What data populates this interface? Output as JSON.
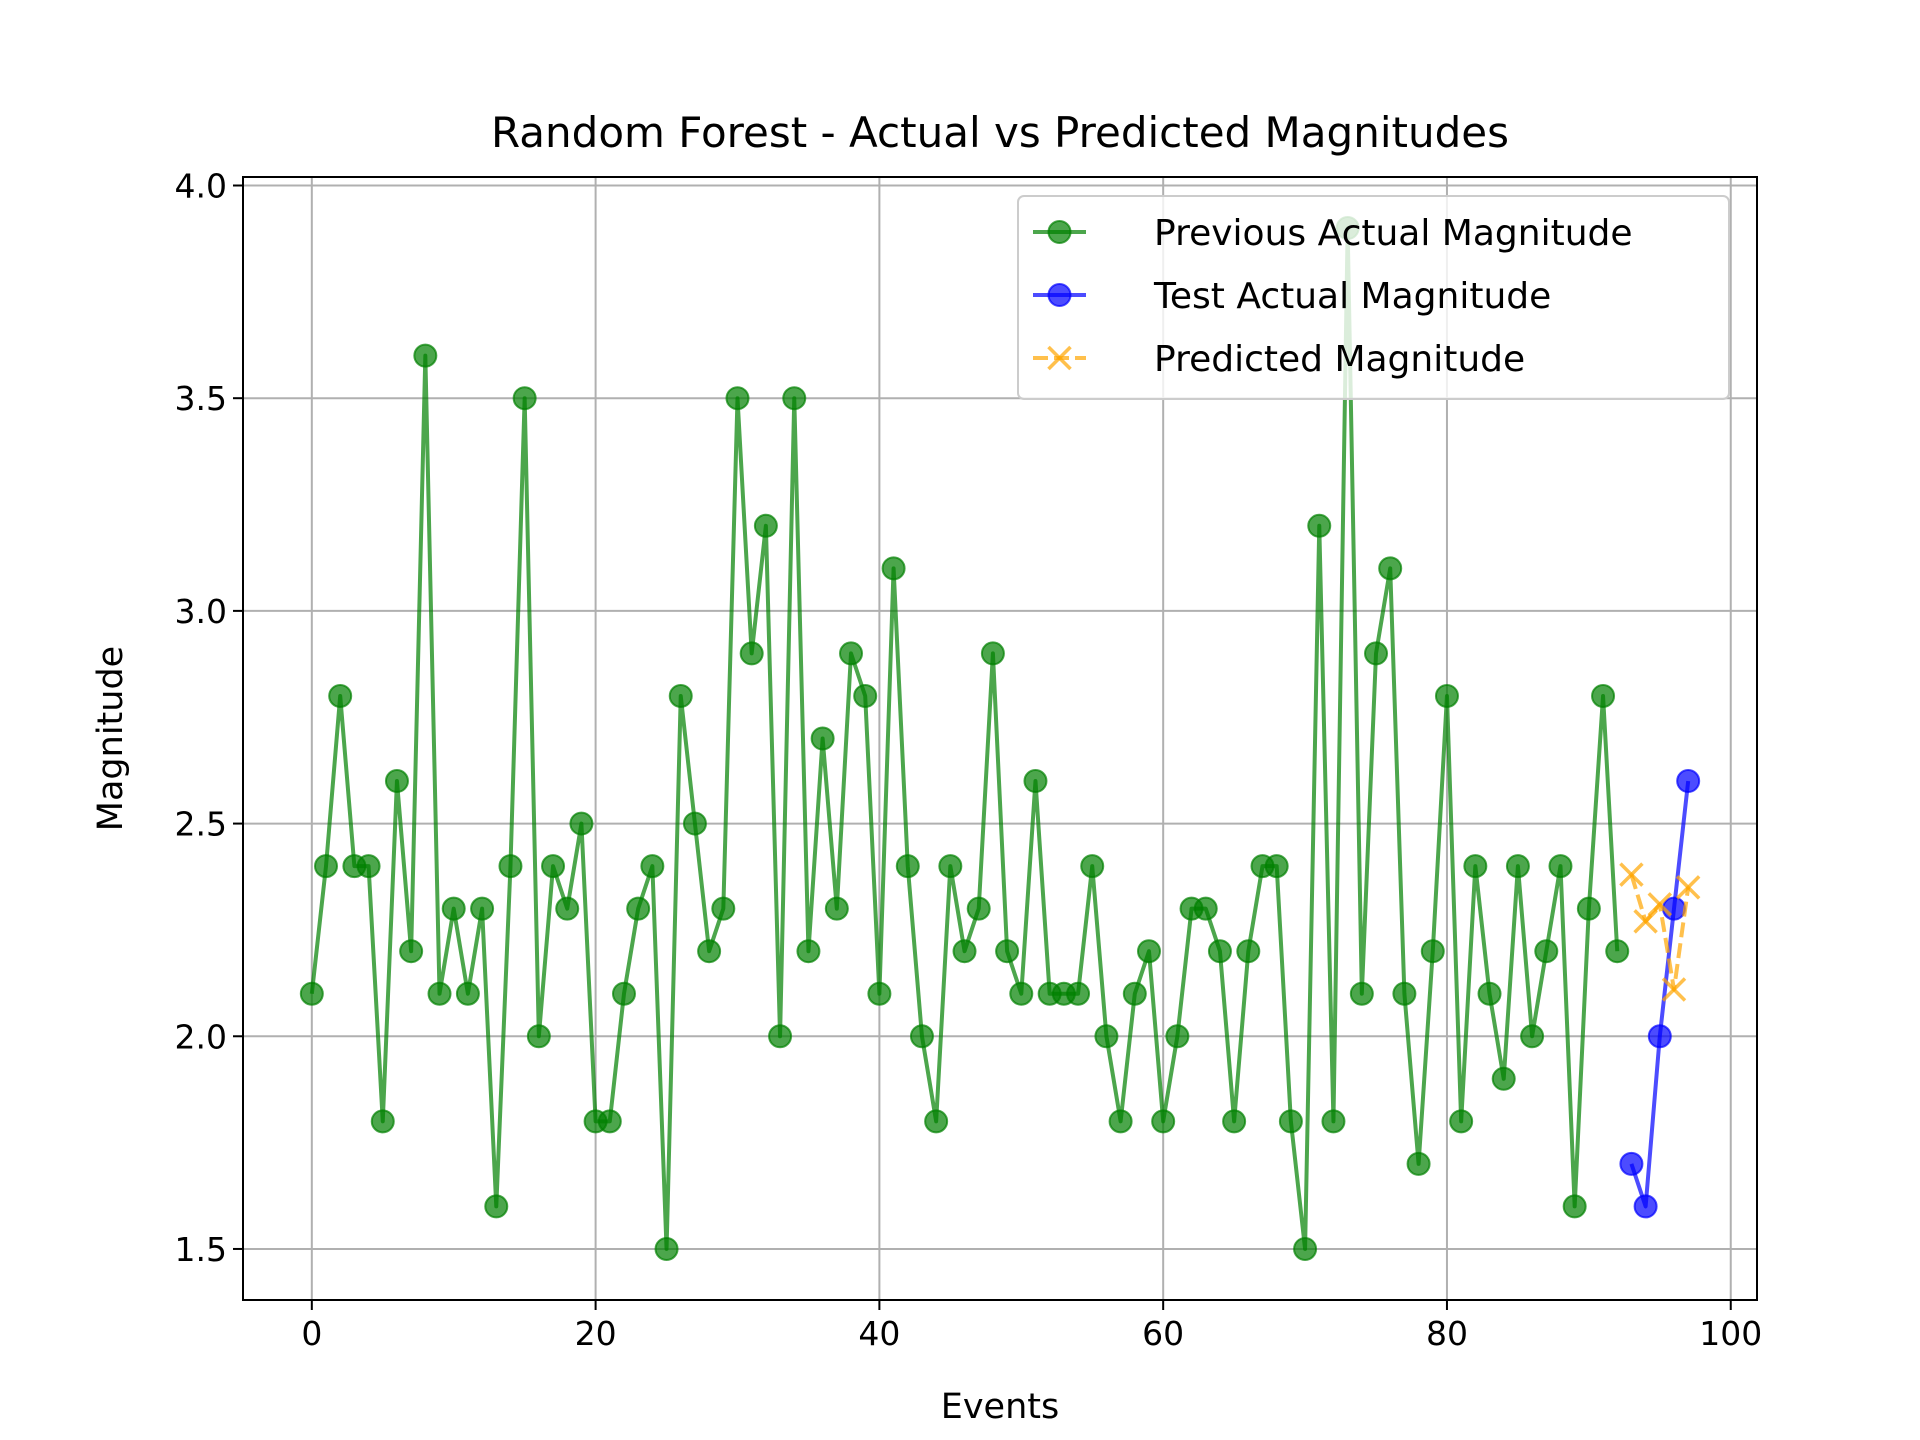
{
  "chart_data": {
    "type": "line",
    "title": "Random Forest - Actual vs Predicted Magnitudes",
    "xlabel": "Events",
    "ylabel": "Magnitude",
    "xlim": [
      -4.85,
      101.85
    ],
    "ylim": [
      1.38,
      4.02
    ],
    "xticks": [
      0,
      20,
      40,
      60,
      80,
      100
    ],
    "xtick_labels": [
      "0",
      "20",
      "40",
      "60",
      "80",
      "100"
    ],
    "yticks": [
      1.5,
      2.0,
      2.5,
      3.0,
      3.5,
      4.0
    ],
    "ytick_labels": [
      "1.5",
      "2.0",
      "2.5",
      "3.0",
      "3.5",
      "4.0"
    ],
    "grid": true,
    "legend_position": "upper right",
    "series": [
      {
        "name": "Previous Actual Magnitude",
        "color": "#008000",
        "marker": "circle",
        "linestyle": "solid",
        "x": [
          0,
          1,
          2,
          3,
          4,
          5,
          6,
          7,
          8,
          9,
          10,
          11,
          12,
          13,
          14,
          15,
          16,
          17,
          18,
          19,
          20,
          21,
          22,
          23,
          24,
          25,
          26,
          27,
          28,
          29,
          30,
          31,
          32,
          33,
          34,
          35,
          36,
          37,
          38,
          39,
          40,
          41,
          42,
          43,
          44,
          45,
          46,
          47,
          48,
          49,
          50,
          51,
          52,
          53,
          54,
          55,
          56,
          57,
          58,
          59,
          60,
          61,
          62,
          63,
          64,
          65,
          66,
          67,
          68,
          69,
          70,
          71,
          72,
          73,
          74,
          75,
          76,
          77,
          78,
          79,
          80,
          81,
          82,
          83,
          84,
          85,
          86,
          87,
          88,
          89,
          90,
          91,
          92
        ],
        "y": [
          2.1,
          2.4,
          2.8,
          2.4,
          2.4,
          1.8,
          2.6,
          2.2,
          3.6,
          2.1,
          2.3,
          2.1,
          2.3,
          1.6,
          2.4,
          3.5,
          2.0,
          2.4,
          2.3,
          2.5,
          1.8,
          1.8,
          2.1,
          2.3,
          2.4,
          1.5,
          2.8,
          2.5,
          2.2,
          2.3,
          3.5,
          2.9,
          3.2,
          2.0,
          3.5,
          2.2,
          2.7,
          2.3,
          2.9,
          2.8,
          2.1,
          3.1,
          2.4,
          2.0,
          1.8,
          2.4,
          2.2,
          2.3,
          2.9,
          2.2,
          2.1,
          2.6,
          2.1,
          2.1,
          2.1,
          2.4,
          2.0,
          1.8,
          2.1,
          2.2,
          1.8,
          2.0,
          2.3,
          2.3,
          2.2,
          1.8,
          2.2,
          2.4,
          2.4,
          1.8,
          1.5,
          3.2,
          1.8,
          3.9,
          2.1,
          2.9,
          3.1,
          2.1,
          1.7,
          2.2,
          2.8,
          1.8,
          2.4,
          2.1,
          1.9,
          2.4,
          2.0,
          2.2,
          2.4,
          1.6,
          2.3,
          2.8,
          2.2
        ]
      },
      {
        "name": "Test Actual Magnitude",
        "color": "#0000ff",
        "marker": "circle",
        "linestyle": "solid",
        "x": [
          93,
          94,
          95,
          96,
          97
        ],
        "y": [
          1.7,
          1.6,
          2.0,
          2.3,
          2.6
        ]
      },
      {
        "name": "Predicted Magnitude",
        "color": "#ffa500",
        "marker": "x",
        "linestyle": "dashed",
        "x": [
          93,
          94,
          95,
          96,
          97
        ],
        "y": [
          2.38,
          2.27,
          2.31,
          2.11,
          2.35
        ]
      }
    ]
  }
}
